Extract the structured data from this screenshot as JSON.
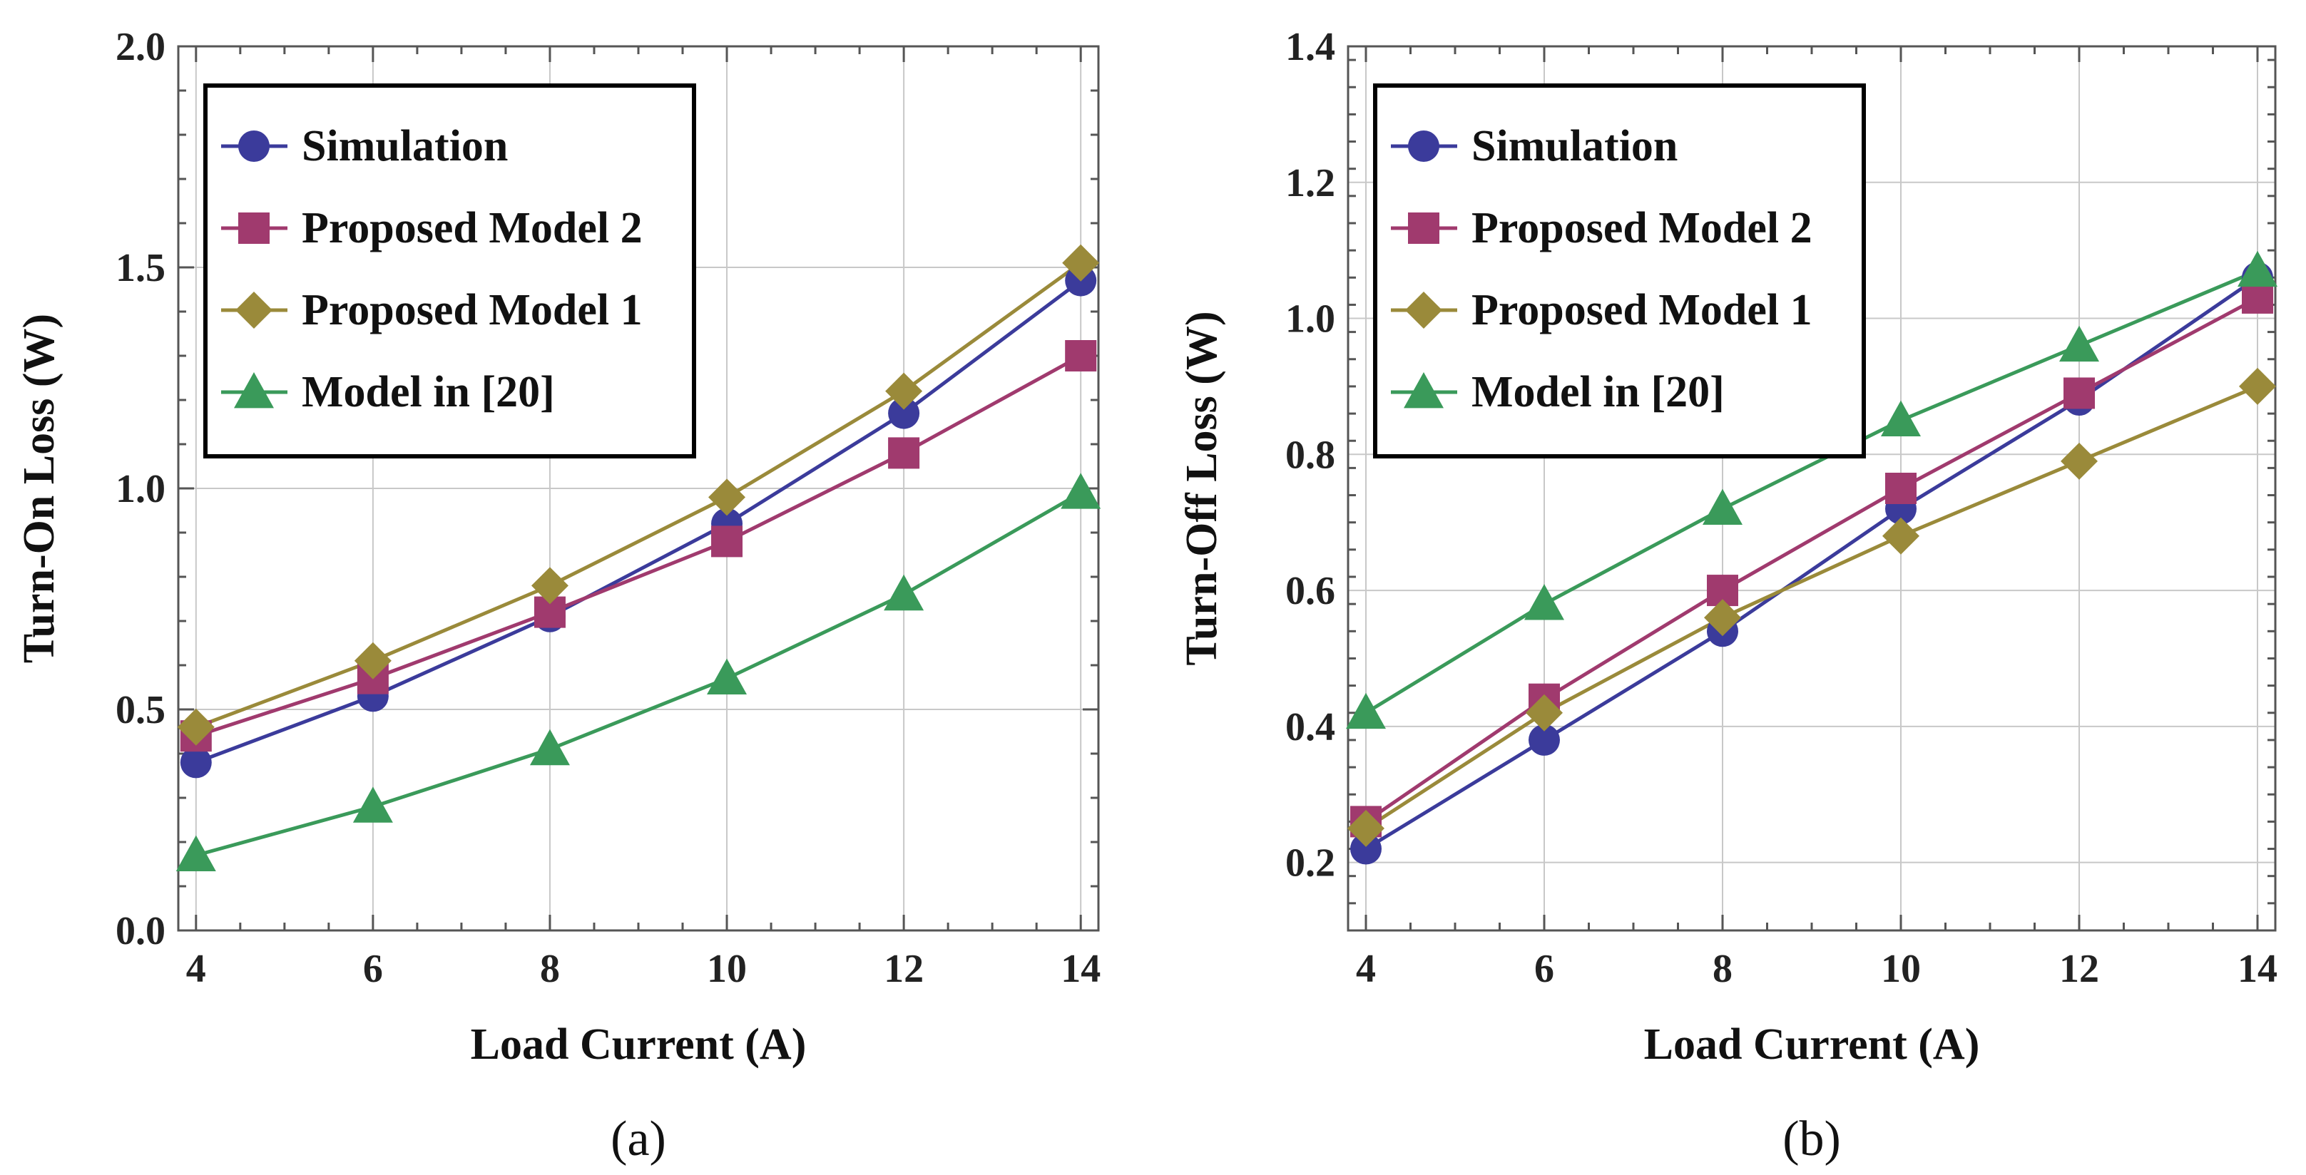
{
  "chart_data": [
    {
      "type": "line",
      "panel_label": "(a)",
      "xlabel": "Load Current (A)",
      "ylabel": "Turn-On Loss (W)",
      "x": [
        4,
        6,
        8,
        10,
        12,
        14
      ],
      "xlim": [
        3.8,
        14.2
      ],
      "ylim": [
        0.0,
        2.0
      ],
      "xticks": [
        "4",
        "6",
        "8",
        "10",
        "12",
        "14"
      ],
      "yticks": [
        "0.0",
        "0.5",
        "1.0",
        "1.5",
        "2.0"
      ],
      "ytick_values": [
        0.0,
        0.5,
        1.0,
        1.5,
        2.0
      ],
      "grid": true,
      "legend_position": "top-left",
      "series": [
        {
          "name": "Simulation",
          "marker": "circle",
          "color": "#3b3b9b",
          "values": [
            0.38,
            0.53,
            0.71,
            0.92,
            1.17,
            1.47
          ]
        },
        {
          "name": "Proposed Model 2",
          "marker": "square",
          "color": "#a03a6e",
          "values": [
            0.44,
            0.57,
            0.72,
            0.88,
            1.08,
            1.3
          ]
        },
        {
          "name": "Proposed Model 1",
          "marker": "diamond",
          "color": "#9a8a3a",
          "values": [
            0.46,
            0.61,
            0.78,
            0.98,
            1.22,
            1.51
          ]
        },
        {
          "name": "Model in [20]",
          "marker": "triangle",
          "color": "#3a9a5a",
          "values": [
            0.17,
            0.28,
            0.41,
            0.57,
            0.76,
            0.99
          ]
        }
      ]
    },
    {
      "type": "line",
      "panel_label": "(b)",
      "xlabel": "Load Current (A)",
      "ylabel": "Turn-Off Loss (W)",
      "x": [
        4,
        6,
        8,
        10,
        12,
        14
      ],
      "xlim": [
        3.8,
        14.2
      ],
      "ylim": [
        0.1,
        1.4
      ],
      "xticks": [
        "4",
        "6",
        "8",
        "10",
        "12",
        "14"
      ],
      "yticks": [
        "0.2",
        "0.4",
        "0.6",
        "0.8",
        "1.0",
        "1.2",
        "1.4"
      ],
      "ytick_values": [
        0.2,
        0.4,
        0.6,
        0.8,
        1.0,
        1.2,
        1.4
      ],
      "grid": true,
      "legend_position": "top-left",
      "series": [
        {
          "name": "Simulation",
          "marker": "circle",
          "color": "#3b3b9b",
          "values": [
            0.22,
            0.38,
            0.54,
            0.72,
            0.88,
            1.06
          ]
        },
        {
          "name": "Proposed Model 2",
          "marker": "square",
          "color": "#a03a6e",
          "values": [
            0.26,
            0.44,
            0.6,
            0.75,
            0.89,
            1.03
          ]
        },
        {
          "name": "Proposed Model 1",
          "marker": "diamond",
          "color": "#9a8a3a",
          "values": [
            0.25,
            0.42,
            0.56,
            0.68,
            0.79,
            0.9
          ]
        },
        {
          "name": "Model in [20]",
          "marker": "triangle",
          "color": "#3a9a5a",
          "values": [
            0.42,
            0.58,
            0.72,
            0.85,
            0.96,
            1.07
          ]
        }
      ]
    }
  ]
}
